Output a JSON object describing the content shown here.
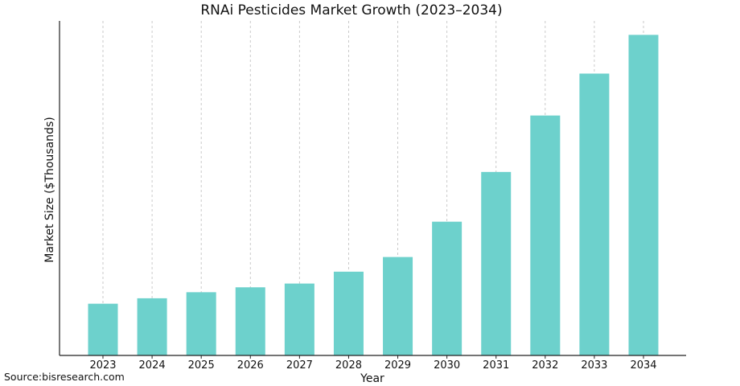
{
  "chart_data": {
    "type": "bar",
    "title": "RNAi Pesticides Market Growth (2023–2034)",
    "xlabel": "Year",
    "ylabel": "Market Size ($Thousands)",
    "categories": [
      "2023",
      "2024",
      "2025",
      "2026",
      "2027",
      "2028",
      "2029",
      "2030",
      "2031",
      "2032",
      "2033",
      "2034"
    ],
    "values": [
      154.6,
      170.9,
      189.0,
      203.7,
      214.9,
      250.4,
      294.2,
      399.8,
      548.5,
      717.2,
      842.5,
      958.3
    ],
    "ylim": [
      0,
      1000
    ],
    "y_ticks_shown": false,
    "grid": "vertical dashed",
    "bar_color": "#6dd1cc"
  },
  "source": "Source:bisresearch.com"
}
